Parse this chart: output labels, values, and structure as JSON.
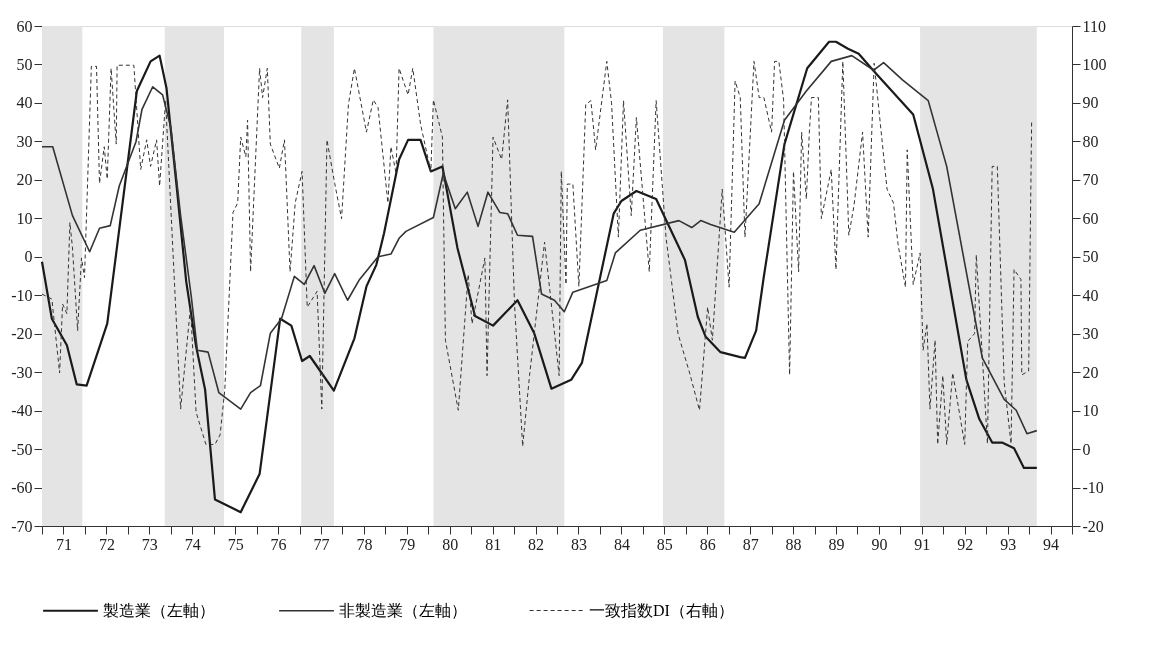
{
  "chart_data": {
    "type": "line",
    "xlim": [
      70.5,
      94.5
    ],
    "xticks": [
      {
        "value": 70.5,
        "label": null
      },
      71,
      {
        "value": 71.5,
        "label": null
      },
      72,
      {
        "value": 72.5,
        "label": null
      },
      73,
      {
        "value": 73.5,
        "label": null
      },
      74,
      {
        "value": 74.5,
        "label": null
      },
      75,
      {
        "value": 75.5,
        "label": null
      },
      76,
      {
        "value": 76.5,
        "label": null
      },
      77,
      {
        "value": 77.5,
        "label": null
      },
      78,
      {
        "value": 78.5,
        "label": null
      },
      79,
      {
        "value": 79.5,
        "label": null
      },
      80,
      {
        "value": 80.5,
        "label": null
      },
      81,
      {
        "value": 81.5,
        "label": null
      },
      82,
      {
        "value": 82.5,
        "label": null
      },
      83,
      {
        "value": 83.5,
        "label": null
      },
      84,
      {
        "value": 84.5,
        "label": null
      },
      85,
      {
        "value": 85.5,
        "label": null
      },
      86,
      {
        "value": 86.5,
        "label": null
      },
      87,
      {
        "value": 87.5,
        "label": null
      },
      88,
      {
        "value": 88.5,
        "label": null
      },
      89,
      {
        "value": 89.5,
        "label": null
      },
      90,
      {
        "value": 90.5,
        "label": null
      },
      91,
      {
        "value": 91.5,
        "label": null
      },
      92,
      {
        "value": 92.5,
        "label": null
      },
      93,
      {
        "value": 93.5,
        "label": null
      },
      94,
      {
        "value": 94.5,
        "label": null
      }
    ],
    "ylim": [
      -70,
      60
    ],
    "yticks": [
      -70,
      -60,
      -50,
      -40,
      -30,
      -20,
      -10,
      0,
      10,
      20,
      30,
      40,
      50,
      60
    ],
    "y2lim": [
      -20,
      110
    ],
    "y2ticks": [
      -20,
      -10,
      0,
      10,
      20,
      30,
      40,
      50,
      60,
      70,
      80,
      90,
      100,
      110
    ],
    "grid": false,
    "legend": "bottom",
    "bands": [
      {
        "axis": "x",
        "from": 70.5,
        "to": 71.44,
        "color": "#e4e4e4"
      },
      {
        "axis": "x",
        "from": 73.36,
        "to": 74.74,
        "color": "#e4e4e4"
      },
      {
        "axis": "x",
        "from": 76.54,
        "to": 77.3,
        "color": "#e4e4e4"
      },
      {
        "axis": "x",
        "from": 79.62,
        "to": 82.67,
        "color": "#e4e4e4"
      },
      {
        "axis": "x",
        "from": 84.97,
        "to": 86.4,
        "color": "#e4e4e4"
      },
      {
        "axis": "x",
        "from": 90.96,
        "to": 93.68,
        "color": "#e4e4e4"
      }
    ],
    "series": [
      {
        "name": "製造業（左軸）",
        "color": "#1a1a1a",
        "line_style": "solid",
        "x": [
          70.5,
          70.73,
          71.08,
          71.31,
          71.54,
          72.02,
          72.71,
          73.03,
          73.24,
          73.4,
          73.63,
          73.86,
          74.09,
          74.3,
          74.53,
          75.13,
          75.57,
          76.05,
          76.31,
          76.56,
          76.74,
          77.3,
          77.78,
          78.06,
          78.29,
          78.47,
          78.82,
          79.03,
          79.32,
          79.56,
          79.83,
          80.18,
          80.59,
          81.01,
          81.58,
          81.97,
          82.37,
          82.83,
          83.08,
          83.82,
          84.0,
          84.35,
          84.81,
          85.48,
          85.78,
          85.96,
          86.31,
          86.77,
          86.88,
          87.14,
          87.32,
          87.8,
          88.33,
          88.84,
          89.0,
          89.28,
          89.53,
          89.88,
          90.8,
          91.26,
          92.04,
          92.34,
          92.64,
          92.87,
          93.15,
          93.38,
          93.68
        ],
        "values": [
          -1.3,
          -16.1,
          -23.0,
          -33.2,
          -33.5,
          -17.4,
          43.1,
          50.8,
          52.3,
          43.9,
          19.1,
          -6.4,
          -23.3,
          -34.5,
          -63.1,
          -66.4,
          -56.5,
          -16.1,
          -17.9,
          -27.1,
          -25.8,
          -34.8,
          -21.2,
          -7.7,
          -2.1,
          6.1,
          25.3,
          30.4,
          30.4,
          22.2,
          23.5,
          2.3,
          -15.4,
          -17.9,
          -11.3,
          -19.9,
          -34.3,
          -32.0,
          -27.6,
          11.2,
          14.5,
          17.1,
          15.0,
          -0.8,
          -15.6,
          -20.7,
          -24.8,
          -26.1,
          -26.3,
          -19.2,
          -5.1,
          29.3,
          49.0,
          55.9,
          55.9,
          54.1,
          52.8,
          48.3,
          37.0,
          17.6,
          -32.0,
          -42.2,
          -48.3,
          -48.3,
          -49.8,
          -54.9,
          -54.9
        ]
      },
      {
        "name": "非製造業（左軸）",
        "color": "#333333",
        "line_style": "solid",
        "x": [
          70.5,
          70.75,
          71.21,
          71.61,
          71.84,
          72.09,
          72.3,
          72.69,
          72.83,
          73.08,
          73.31,
          73.5,
          73.73,
          73.98,
          74.12,
          74.37,
          74.62,
          75.13,
          75.36,
          75.59,
          75.82,
          76.08,
          76.38,
          76.61,
          76.84,
          77.09,
          77.32,
          77.62,
          77.9,
          78.33,
          78.63,
          78.82,
          78.98,
          79.62,
          79.85,
          80.13,
          80.41,
          80.66,
          80.89,
          81.17,
          81.35,
          81.58,
          81.93,
          82.14,
          82.44,
          82.67,
          82.87,
          83.66,
          83.86,
          84.44,
          85.34,
          85.64,
          85.85,
          86.08,
          86.63,
          87.21,
          87.8,
          88.31,
          88.89,
          89.37,
          89.88,
          90.11,
          90.55,
          91.15,
          91.58,
          92.41,
          92.92,
          93.2,
          93.45,
          93.68
        ],
        "values": [
          28.6,
          28.6,
          10.7,
          1.3,
          7.4,
          8.1,
          18.4,
          29.9,
          38.3,
          44.2,
          42.1,
          33.7,
          10.7,
          -10.5,
          -24.3,
          -24.8,
          -35.3,
          -39.6,
          -35.3,
          -33.5,
          -19.9,
          -16.1,
          -5.1,
          -7.2,
          -2.3,
          -9.5,
          -4.4,
          -11.3,
          -5.9,
          0.0,
          0.7,
          4.8,
          6.6,
          10.2,
          21.7,
          12.5,
          16.8,
          7.9,
          16.8,
          11.5,
          11.2,
          5.6,
          5.3,
          -9.7,
          -11.3,
          -14.3,
          -9.2,
          -6.2,
          1.0,
          6.9,
          9.4,
          7.6,
          9.4,
          8.4,
          6.4,
          13.8,
          35.5,
          43.1,
          50.8,
          52.3,
          48.5,
          50.5,
          46.0,
          40.6,
          23.5,
          -26.3,
          -37.1,
          -39.9,
          -46.0,
          -45.2
        ]
      },
      {
        "name": "一致指数DI（右軸）",
        "color": "#333333",
        "line_style": "dashed",
        "axis": "y2",
        "x": [
          70.5,
          70.73,
          70.91,
          70.98,
          71.08,
          71.15,
          71.21,
          71.33,
          71.42,
          71.49,
          71.65,
          71.77,
          71.84,
          71.95,
          72.02,
          72.11,
          72.23,
          72.25,
          72.64,
          72.8,
          72.94,
          73.03,
          73.17,
          73.24,
          73.38,
          73.73,
          73.96,
          74.09,
          74.32,
          74.53,
          74.65,
          74.76,
          74.95,
          75.06,
          75.13,
          75.25,
          75.29,
          75.36,
          75.57,
          75.64,
          75.75,
          75.82,
          76.03,
          76.15,
          76.28,
          76.4,
          76.56,
          76.68,
          76.91,
          77.02,
          77.14,
          77.32,
          77.48,
          77.64,
          77.78,
          78.06,
          78.22,
          78.33,
          78.56,
          78.63,
          78.75,
          78.82,
          79.03,
          79.14,
          79.32,
          79.56,
          79.62,
          79.83,
          79.9,
          80.2,
          80.43,
          80.52,
          80.82,
          80.87,
          81.01,
          81.21,
          81.35,
          81.51,
          81.7,
          81.86,
          82.21,
          82.55,
          82.6,
          82.71,
          82.74,
          82.87,
          83.01,
          83.17,
          83.29,
          83.4,
          83.66,
          83.77,
          83.93,
          84.05,
          84.23,
          84.35,
          84.65,
          84.81,
          85.04,
          85.32,
          85.59,
          85.82,
          86.01,
          86.12,
          86.35,
          86.51,
          86.65,
          86.77,
          86.88,
          87.09,
          87.21,
          87.32,
          87.5,
          87.57,
          87.67,
          87.78,
          87.92,
          88.01,
          88.13,
          88.2,
          88.31,
          88.38,
          88.43,
          88.59,
          88.66,
          88.89,
          89.0,
          89.16,
          89.3,
          89.42,
          89.62,
          89.75,
          89.89,
          90.19,
          90.34,
          90.45,
          90.62,
          90.66,
          90.8,
          90.96,
          91.03,
          91.12,
          91.19,
          91.31,
          91.37,
          91.49,
          91.58,
          91.72,
          92.0,
          92.07,
          92.23,
          92.27,
          92.53,
          92.64,
          92.76,
          92.92,
          93.08,
          93.15,
          93.31,
          93.33,
          93.49,
          93.56
        ],
        "values": [
          40.3,
          39.0,
          19.8,
          37.7,
          35.2,
          58.9,
          52.3,
          30.8,
          49.7,
          44.6,
          99.5,
          99.5,
          69.1,
          78.6,
          70.2,
          99.0,
          79.3,
          99.8,
          99.8,
          72.7,
          80.4,
          73.5,
          80.4,
          68.4,
          90.6,
          10.4,
          36.9,
          9.6,
          1.2,
          1.2,
          3.7,
          15.5,
          61.5,
          64.0,
          81.1,
          76.0,
          85.5,
          46.1,
          99.0,
          91.4,
          99.0,
          79.3,
          73.0,
          80.4,
          46.1,
          64.0,
          72.2,
          36.9,
          41.0,
          10.4,
          80.4,
          69.1,
          59.9,
          89.6,
          99.0,
          82.4,
          90.8,
          88.8,
          64.0,
          78.6,
          71.7,
          99.0,
          92.1,
          99.0,
          84.5,
          72.2,
          90.8,
          81.1,
          28.3,
          10.1,
          45.4,
          32.6,
          49.7,
          19.1,
          81.1,
          75.3,
          90.8,
          37.7,
          0.7,
          19.1,
          53.8,
          19.1,
          72.2,
          42.8,
          68.9,
          68.9,
          42.3,
          89.6,
          90.6,
          77.8,
          100.8,
          90.1,
          55.1,
          90.6,
          60.7,
          86.2,
          46.1,
          90.6,
          55.1,
          30.0,
          19.8,
          10.1,
          36.9,
          28.3,
          67.6,
          42.1,
          95.7,
          91.4,
          55.1,
          100.8,
          91.4,
          91.4,
          82.4,
          100.8,
          100.8,
          90.8,
          19.3,
          72.2,
          46.1,
          82.4,
          65.0,
          82.4,
          91.4,
          91.4,
          59.9,
          72.7,
          46.7,
          100.8,
          55.6,
          63.3,
          82.4,
          55.1,
          100.3,
          67.6,
          64.0,
          53.0,
          42.1,
          77.8,
          42.8,
          51.0,
          25.7,
          32.6,
          10.4,
          28.3,
          1.2,
          19.1,
          1.2,
          19.8,
          1.2,
          28.0,
          30.0,
          50.5,
          1.4,
          73.5,
          73.5,
          17.3,
          1.4,
          46.7,
          44.1,
          19.3,
          20.3,
          85.7
        ]
      }
    ]
  }
}
